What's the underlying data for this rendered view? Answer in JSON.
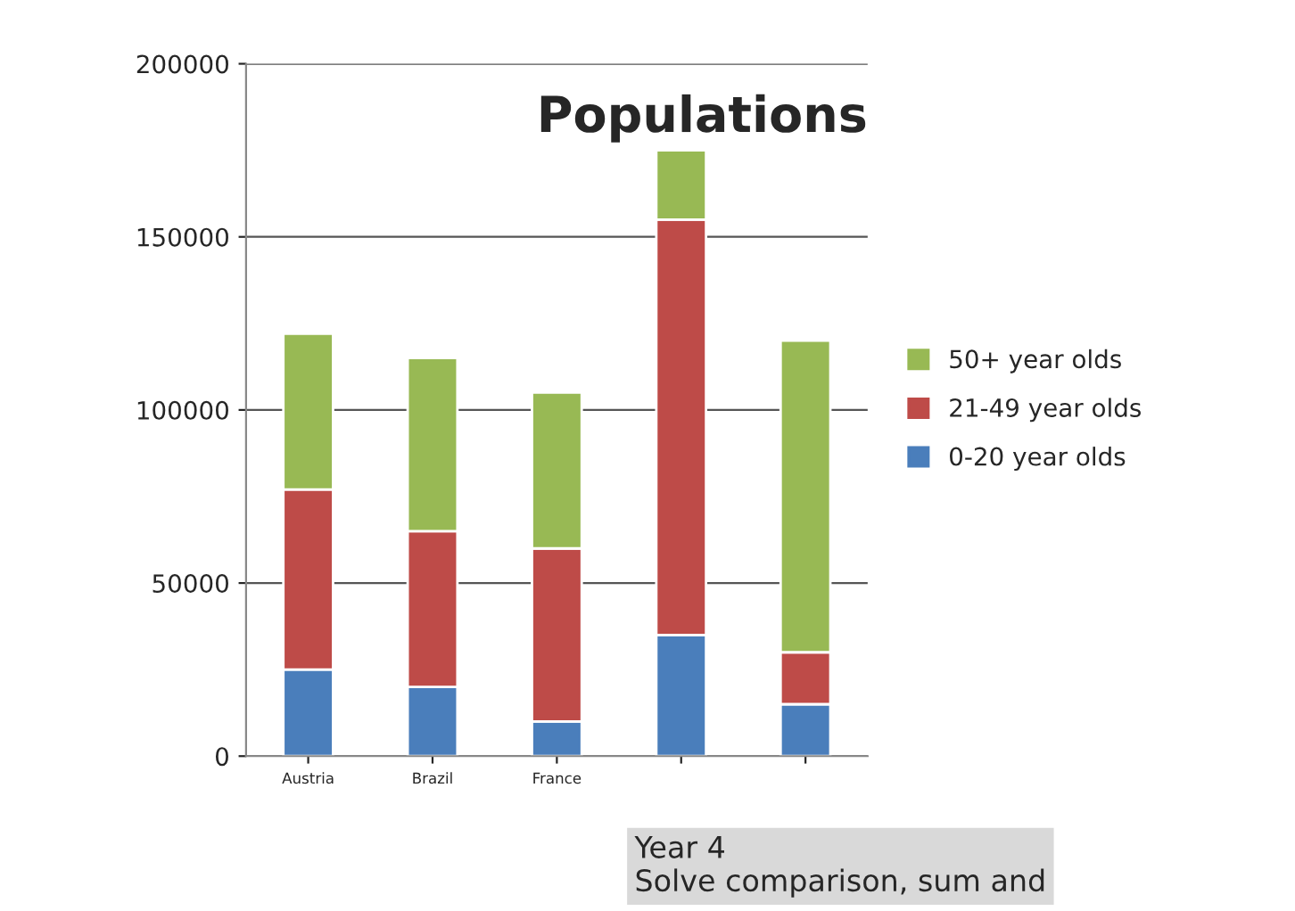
{
  "chart_data": {
    "type": "bar",
    "title": "Populations",
    "stacked": true,
    "categories": [
      "Austria",
      "Brazil",
      "France",
      null,
      null
    ],
    "series": [
      {
        "name": "0-20 year olds",
        "color": "#4a7ebb",
        "values": [
          25000,
          20000,
          10000,
          35000,
          15000
        ]
      },
      {
        "name": "21-49 year olds",
        "color": "#be4b48",
        "values": [
          52000,
          45000,
          50000,
          120000,
          15000
        ]
      },
      {
        "name": "50+ year olds",
        "color": "#98b954",
        "values": [
          45000,
          50000,
          45000,
          20000,
          90000
        ]
      }
    ],
    "ylim": [
      0,
      200000
    ],
    "yticks": [
      0,
      50000,
      100000,
      150000,
      200000
    ],
    "grid": "y",
    "legend": "right",
    "annotations": [
      "Year 4\nSolve comparison, sum and"
    ]
  }
}
